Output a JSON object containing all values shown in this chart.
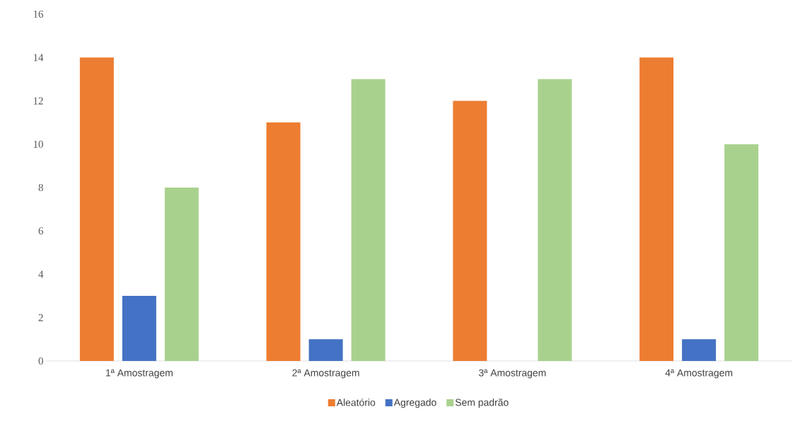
{
  "chart_data": {
    "type": "bar",
    "categories": [
      "1ª Amostragem",
      "2ª Amostragem",
      "3ª Amostragem",
      "4ª Amostragem"
    ],
    "series": [
      {
        "name": "Aleatório",
        "color": "#ed7d31",
        "values": [
          14,
          11,
          12,
          14
        ]
      },
      {
        "name": "Agregado",
        "color": "#4472c4",
        "values": [
          3,
          1,
          0,
          1
        ]
      },
      {
        "name": "Sem padrão",
        "color": "#a9d18e",
        "values": [
          8,
          13,
          13,
          10
        ]
      }
    ],
    "ylim": [
      0,
      16
    ],
    "yticks": [
      0,
      2,
      4,
      6,
      8,
      10,
      12,
      14,
      16
    ],
    "grid": false,
    "legend": "bottom"
  }
}
